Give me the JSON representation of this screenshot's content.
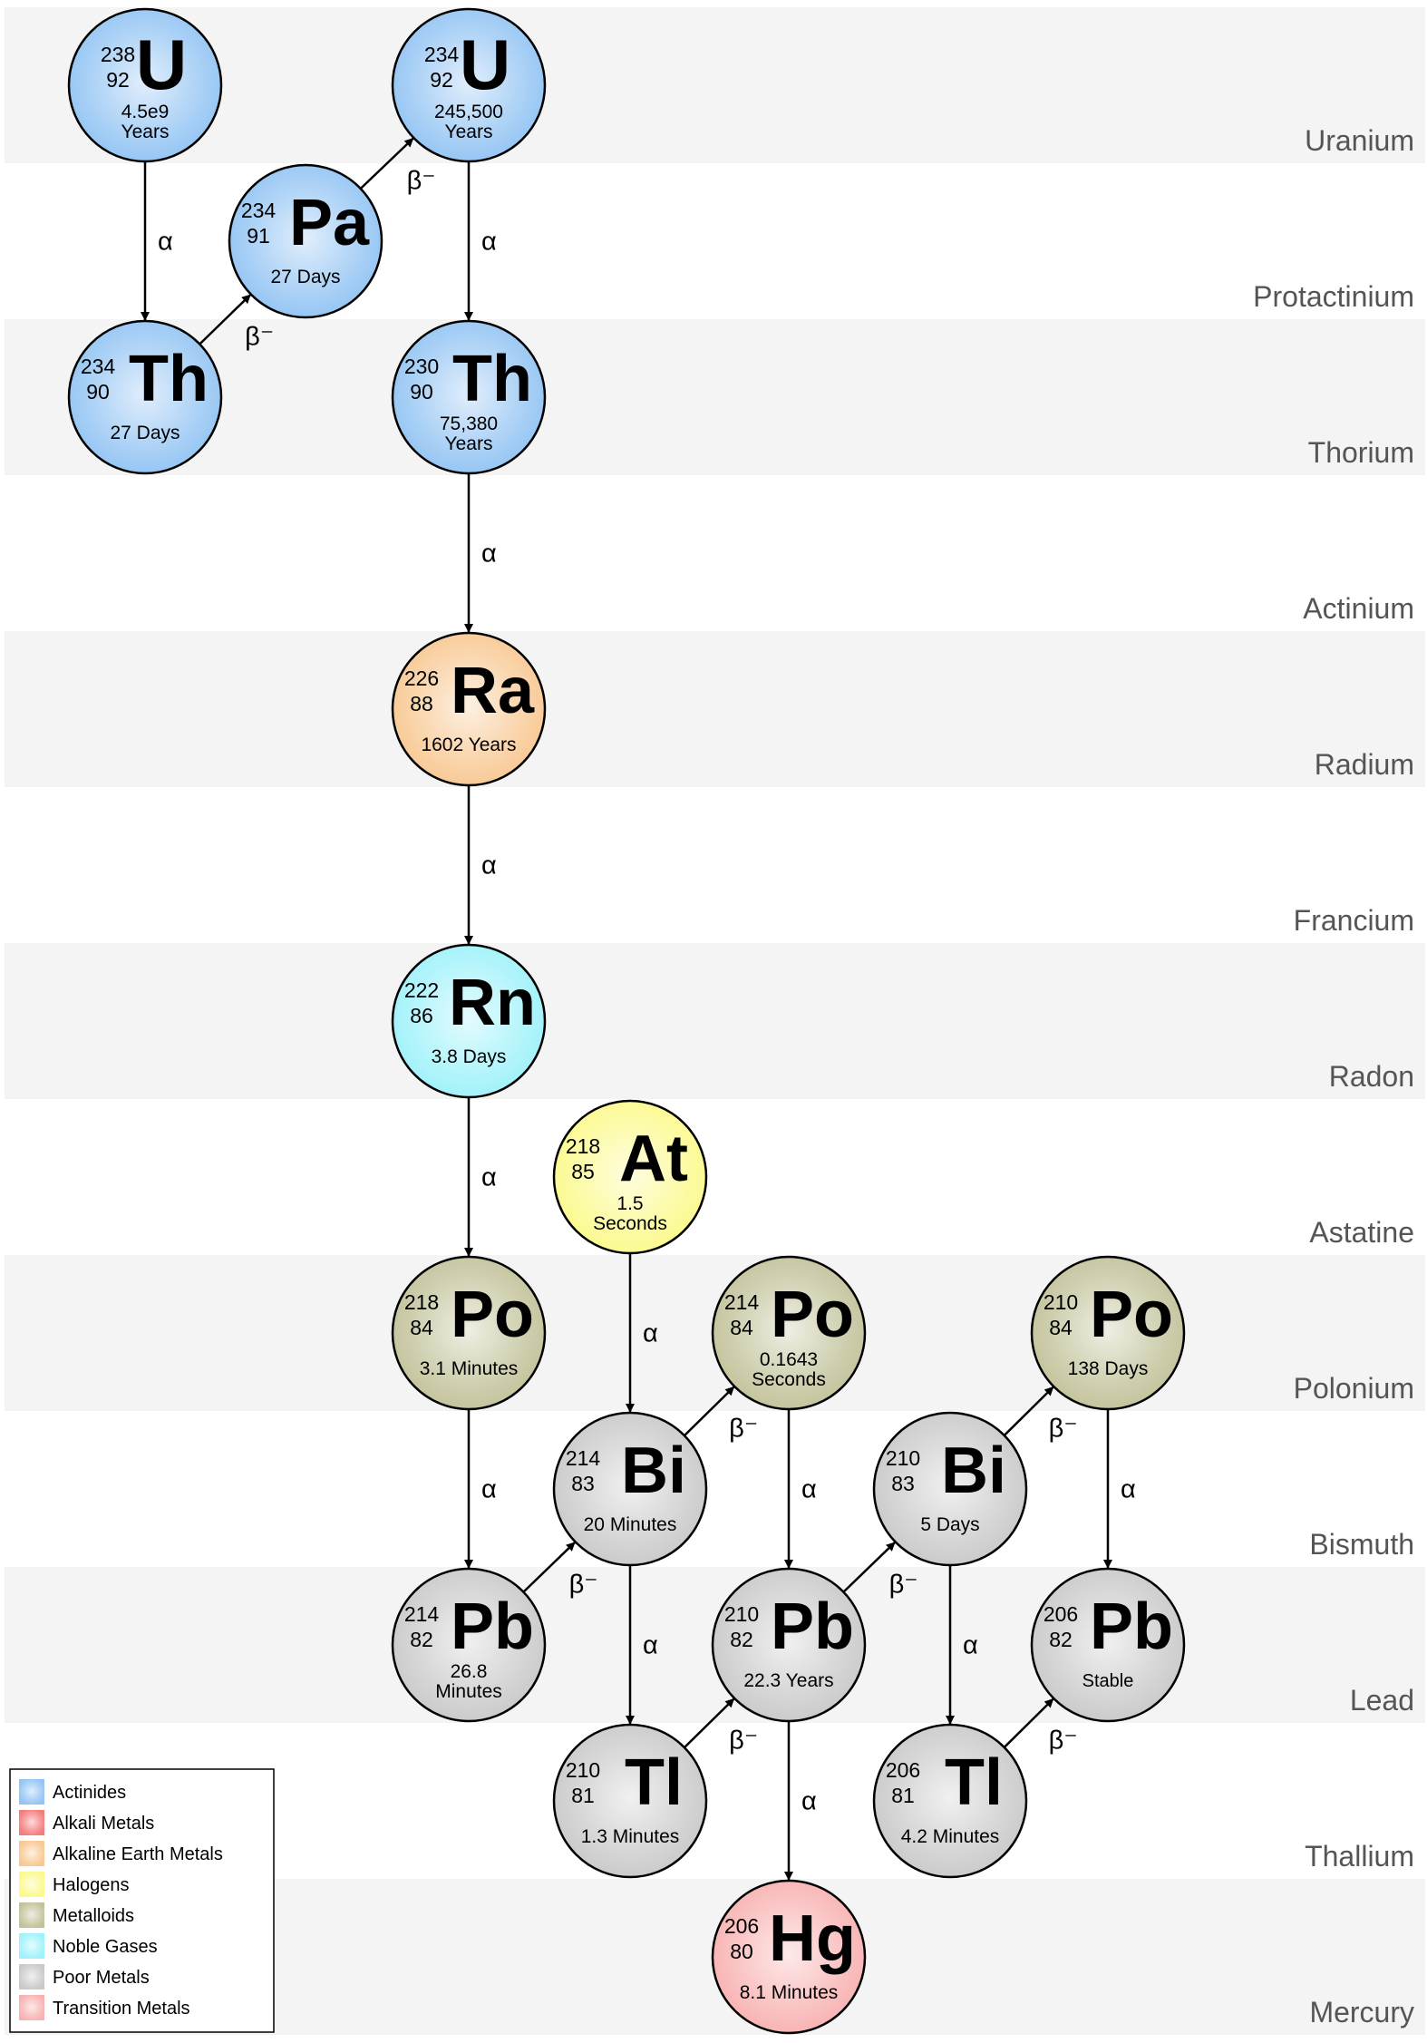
{
  "rows": [
    {
      "id": "U",
      "label": "Uranium"
    },
    {
      "id": "Pa",
      "label": "Protactinium"
    },
    {
      "id": "Th",
      "label": "Thorium"
    },
    {
      "id": "Ac",
      "label": "Actinium"
    },
    {
      "id": "Ra",
      "label": "Radium"
    },
    {
      "id": "Fr",
      "label": "Francium"
    },
    {
      "id": "Rn",
      "label": "Radon"
    },
    {
      "id": "At",
      "label": "Astatine"
    },
    {
      "id": "Po",
      "label": "Polonium"
    },
    {
      "id": "Bi",
      "label": "Bismuth"
    },
    {
      "id": "Pb",
      "label": "Lead"
    },
    {
      "id": "Tl",
      "label": "Thallium"
    },
    {
      "id": "Hg",
      "label": "Mercury"
    }
  ],
  "colors": {
    "Actinides": "#93c4f3",
    "Alkali Metals": "#f47c7c",
    "Alkaline Earth Metals": "#f8c893",
    "Halogens": "#fbf98c",
    "Metalloids": "#c2c29a",
    "Noble Gases": "#9ff1fa",
    "Poor Metals": "#c9c9c9",
    "Transition Metals": "#f8b1b1"
  },
  "nuclides": [
    {
      "id": "u238",
      "symbol": "U",
      "mass": "238",
      "atomic": "92",
      "halflife": [
        "4.5e9",
        "Years"
      ],
      "category": "Actinides"
    },
    {
      "id": "th234",
      "symbol": "Th",
      "mass": "234",
      "atomic": "90",
      "halflife": [
        "27 Days"
      ],
      "category": "Actinides"
    },
    {
      "id": "pa234",
      "symbol": "Pa",
      "mass": "234",
      "atomic": "91",
      "halflife": [
        "27 Days"
      ],
      "category": "Actinides"
    },
    {
      "id": "u234",
      "symbol": "U",
      "mass": "234",
      "atomic": "92",
      "halflife": [
        "245,500",
        "Years"
      ],
      "category": "Actinides"
    },
    {
      "id": "th230",
      "symbol": "Th",
      "mass": "230",
      "atomic": "90",
      "halflife": [
        "75,380",
        "Years"
      ],
      "category": "Actinides"
    },
    {
      "id": "ra226",
      "symbol": "Ra",
      "mass": "226",
      "atomic": "88",
      "halflife": [
        "1602 Years"
      ],
      "category": "Alkaline Earth Metals"
    },
    {
      "id": "rn222",
      "symbol": "Rn",
      "mass": "222",
      "atomic": "86",
      "halflife": [
        "3.8 Days"
      ],
      "category": "Noble Gases"
    },
    {
      "id": "at218",
      "symbol": "At",
      "mass": "218",
      "atomic": "85",
      "halflife": [
        "1.5",
        "Seconds"
      ],
      "category": "Halogens"
    },
    {
      "id": "po218",
      "symbol": "Po",
      "mass": "218",
      "atomic": "84",
      "halflife": [
        "3.1 Minutes"
      ],
      "category": "Metalloids"
    },
    {
      "id": "po214",
      "symbol": "Po",
      "mass": "214",
      "atomic": "84",
      "halflife": [
        "0.1643",
        "Seconds"
      ],
      "category": "Metalloids"
    },
    {
      "id": "po210",
      "symbol": "Po",
      "mass": "210",
      "atomic": "84",
      "halflife": [
        "138 Days"
      ],
      "category": "Metalloids"
    },
    {
      "id": "bi214",
      "symbol": "Bi",
      "mass": "214",
      "atomic": "83",
      "halflife": [
        "20 Minutes"
      ],
      "category": "Poor Metals"
    },
    {
      "id": "bi210",
      "symbol": "Bi",
      "mass": "210",
      "atomic": "83",
      "halflife": [
        "5 Days"
      ],
      "category": "Poor Metals"
    },
    {
      "id": "pb214",
      "symbol": "Pb",
      "mass": "214",
      "atomic": "82",
      "halflife": [
        "26.8",
        "Minutes"
      ],
      "category": "Poor Metals"
    },
    {
      "id": "pb210",
      "symbol": "Pb",
      "mass": "210",
      "atomic": "82",
      "halflife": [
        "22.3 Years"
      ],
      "category": "Poor Metals"
    },
    {
      "id": "pb206",
      "symbol": "Pb",
      "mass": "206",
      "atomic": "82",
      "halflife": [
        "Stable"
      ],
      "category": "Poor Metals"
    },
    {
      "id": "tl210",
      "symbol": "Tl",
      "mass": "210",
      "atomic": "81",
      "halflife": [
        "1.3 Minutes"
      ],
      "category": "Poor Metals"
    },
    {
      "id": "tl206",
      "symbol": "Tl",
      "mass": "206",
      "atomic": "81",
      "halflife": [
        "4.2 Minutes"
      ],
      "category": "Poor Metals"
    },
    {
      "id": "hg206",
      "symbol": "Hg",
      "mass": "206",
      "atomic": "80",
      "halflife": [
        "8.1 Minutes"
      ],
      "category": "Transition Metals"
    }
  ],
  "decays": [
    {
      "from": "u238",
      "to": "th234",
      "type": "α"
    },
    {
      "from": "th234",
      "to": "pa234",
      "type": "β⁻"
    },
    {
      "from": "pa234",
      "to": "u234",
      "type": "β⁻"
    },
    {
      "from": "u234",
      "to": "th230",
      "type": "α"
    },
    {
      "from": "th230",
      "to": "ra226",
      "type": "α"
    },
    {
      "from": "ra226",
      "to": "rn222",
      "type": "α"
    },
    {
      "from": "rn222",
      "to": "po218",
      "type": "α"
    },
    {
      "from": "po218",
      "to": "pb214",
      "type": "α"
    },
    {
      "from": "pb214",
      "to": "bi214",
      "type": "β⁻"
    },
    {
      "from": "at218",
      "to": "bi214",
      "type": "α"
    },
    {
      "from": "bi214",
      "to": "po214",
      "type": "β⁻"
    },
    {
      "from": "bi214",
      "to": "tl210",
      "type": "α"
    },
    {
      "from": "po214",
      "to": "pb210",
      "type": "α"
    },
    {
      "from": "tl210",
      "to": "pb210",
      "type": "β⁻"
    },
    {
      "from": "pb210",
      "to": "bi210",
      "type": "β⁻"
    },
    {
      "from": "pb210",
      "to": "hg206",
      "type": "α"
    },
    {
      "from": "bi210",
      "to": "po210",
      "type": "β⁻"
    },
    {
      "from": "bi210",
      "to": "tl206",
      "type": "α"
    },
    {
      "from": "po210",
      "to": "pb206",
      "type": "α"
    },
    {
      "from": "tl206",
      "to": "pb206",
      "type": "β⁻"
    }
  ],
  "legend": [
    "Actinides",
    "Alkali Metals",
    "Alkaline Earth Metals",
    "Halogens",
    "Metalloids",
    "Noble Gases",
    "Poor Metals",
    "Transition Metals"
  ]
}
